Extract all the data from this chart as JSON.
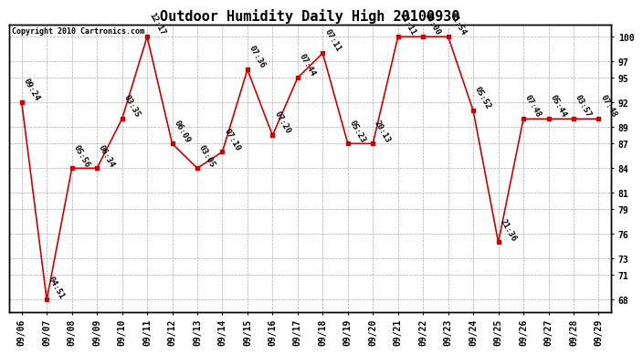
{
  "title": "Outdoor Humidity Daily High 20100930",
  "copyright": "Copyright 2010 Cartronics.com",
  "dates": [
    "09/06",
    "09/07",
    "09/08",
    "09/09",
    "09/10",
    "09/11",
    "09/12",
    "09/13",
    "09/14",
    "09/15",
    "09/16",
    "09/17",
    "09/18",
    "09/19",
    "09/20",
    "09/21",
    "09/22",
    "09/23",
    "09/24",
    "09/25",
    "09/26",
    "09/27",
    "09/28",
    "09/29"
  ],
  "values": [
    92,
    68,
    84,
    84,
    90,
    100,
    87,
    84,
    86,
    96,
    88,
    95,
    98,
    87,
    87,
    100,
    100,
    100,
    91,
    75,
    90,
    90,
    90,
    90
  ],
  "times": [
    "09:24",
    "04:51",
    "05:56",
    "06:34",
    "03:35",
    "12:17",
    "06:09",
    "03:05",
    "07:10",
    "07:36",
    "07:20",
    "07:44",
    "07:11",
    "05:23",
    "20:13",
    "22:11",
    "00:00",
    "01:54",
    "05:52",
    "21:36",
    "07:48",
    "05:44",
    "03:57",
    "07:48"
  ],
  "ylim": [
    66.5,
    101.5
  ],
  "yticks": [
    68,
    71,
    73,
    76,
    79,
    81,
    84,
    87,
    89,
    92,
    95,
    97,
    100
  ],
  "line_color": "#cc0000",
  "marker_color": "#cc0000",
  "marker_size": 3,
  "bg_color": "white",
  "grid_color": "#aaaaaa",
  "title_fontsize": 11,
  "label_fontsize": 6.5,
  "tick_fontsize": 7,
  "copyright_fontsize": 6
}
